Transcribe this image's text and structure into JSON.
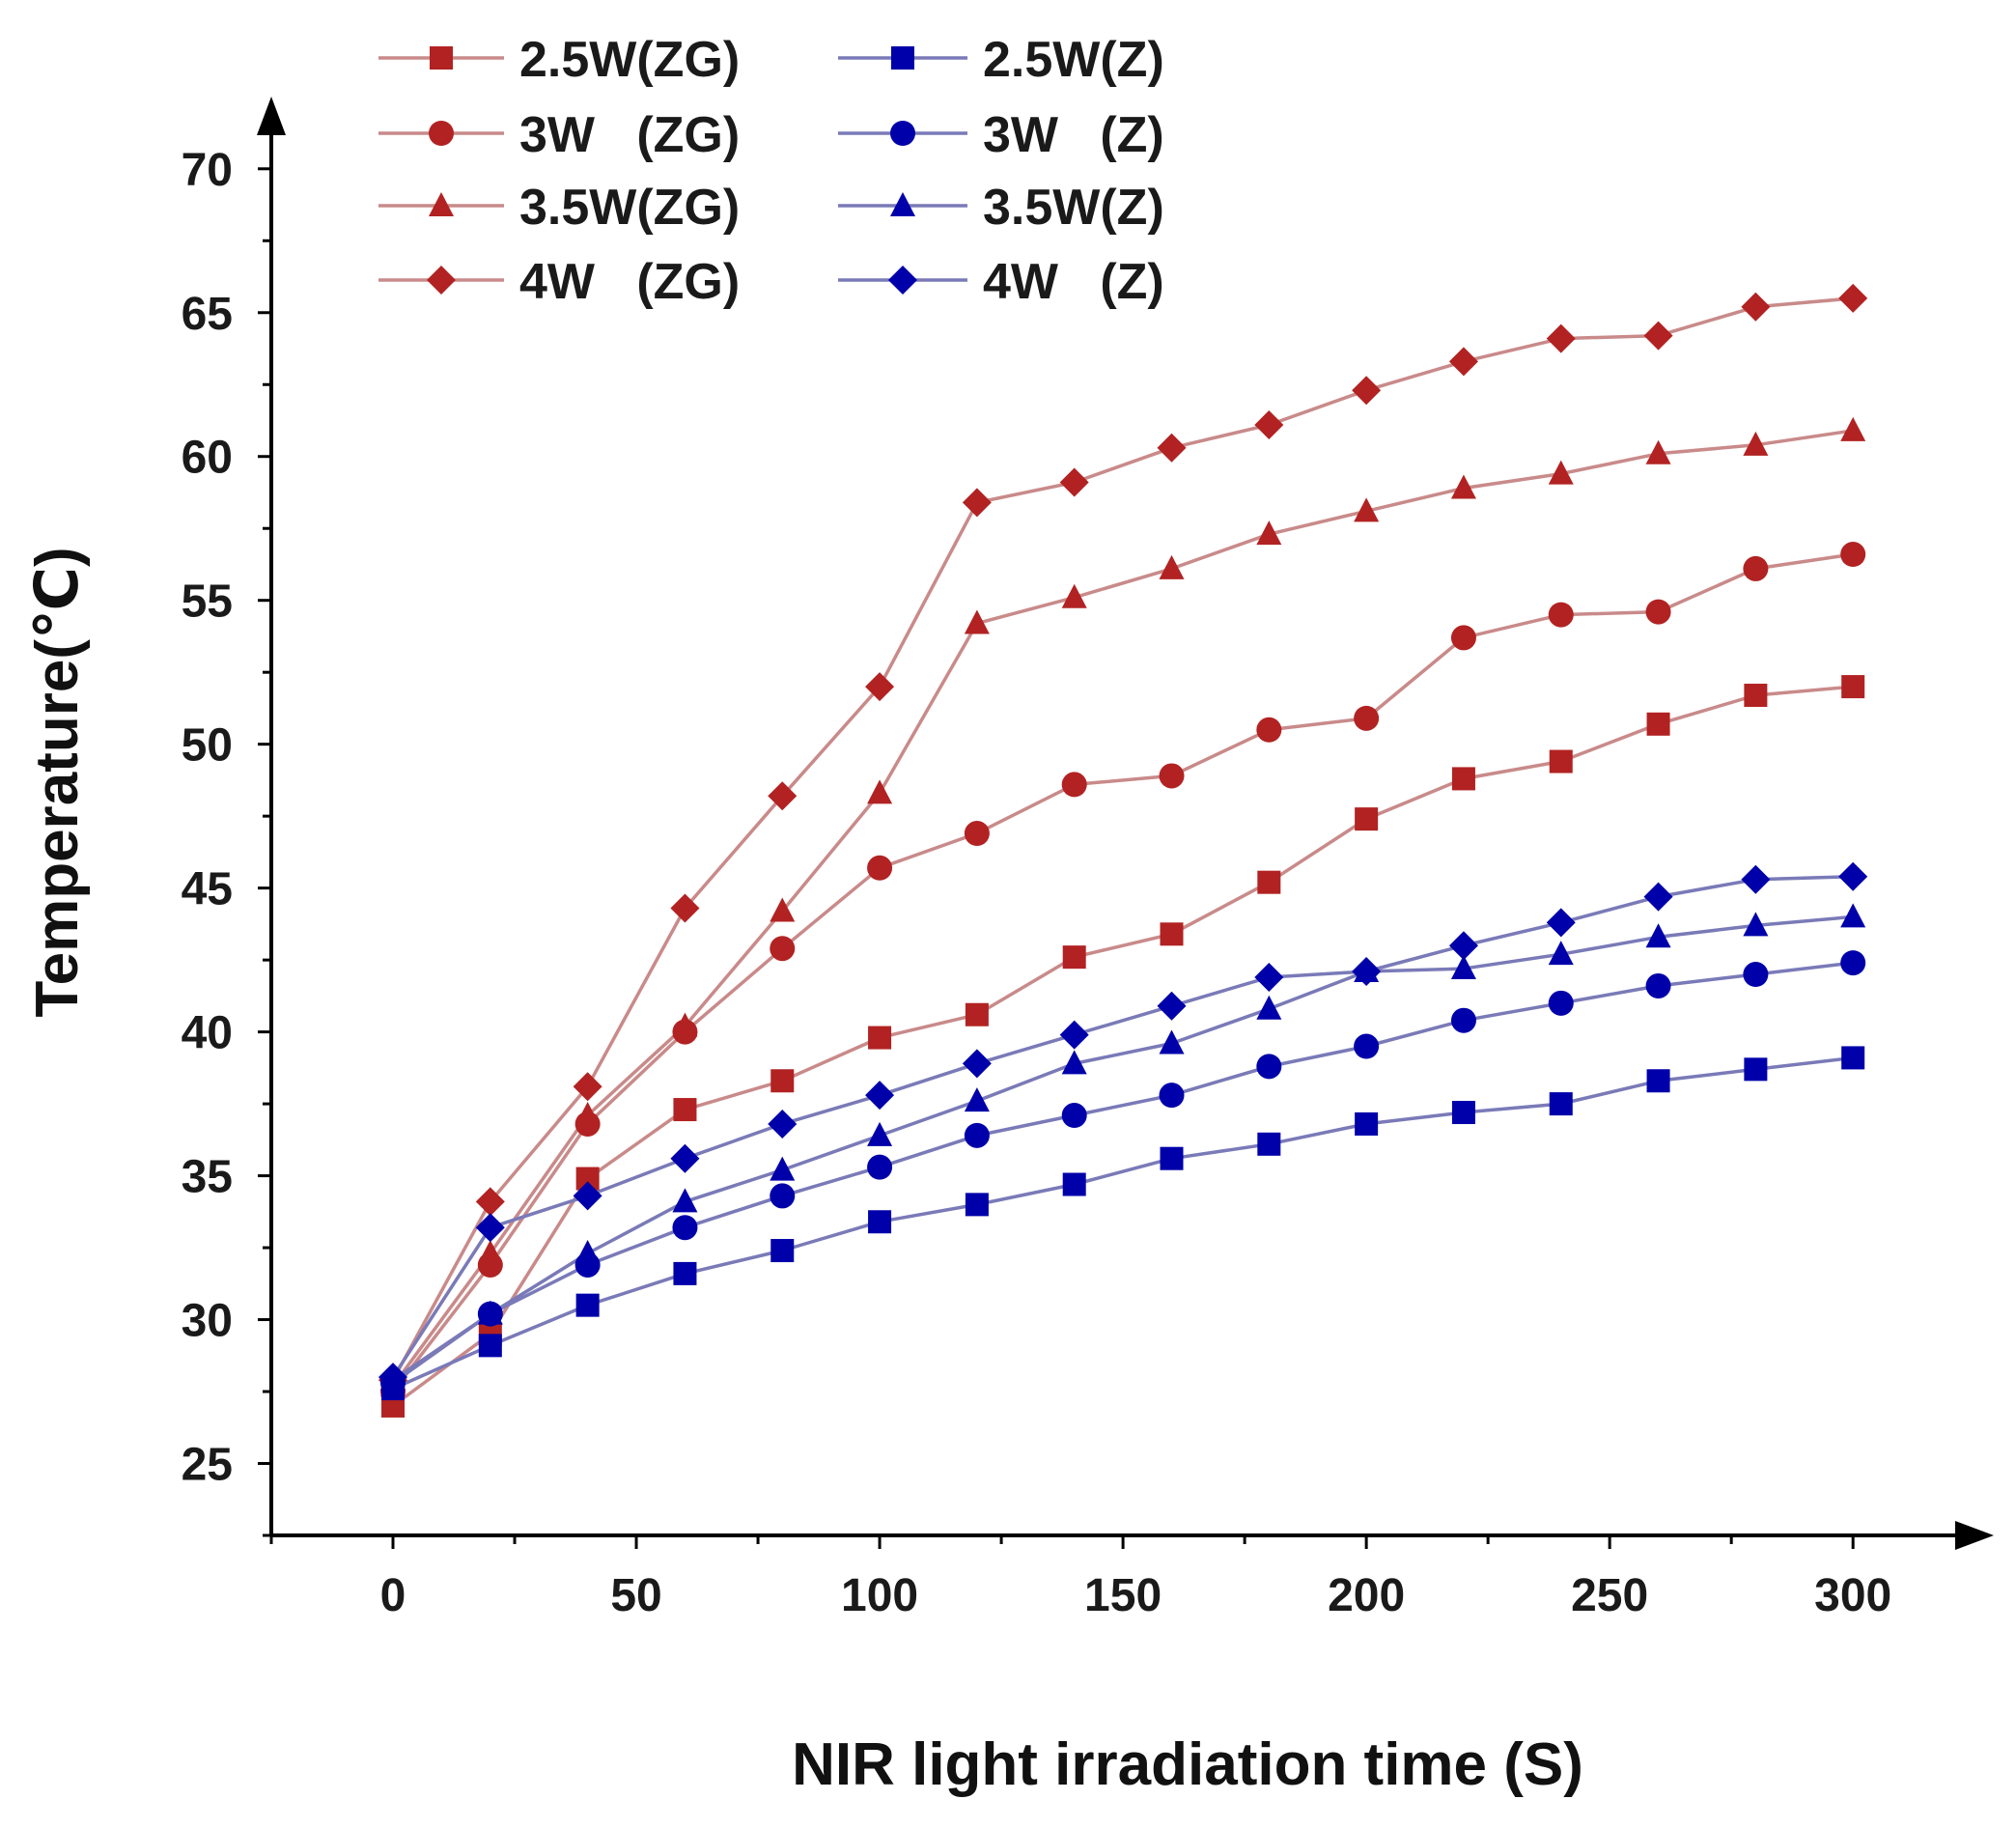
{
  "chart_data": {
    "type": "line",
    "title": "",
    "xlabel": "NIR light irradiation time (S)",
    "ylabel": "Temperature(℃)",
    "xlim": [
      -25,
      320
    ],
    "ylim": [
      22.5,
      71
    ],
    "xticks": [
      0,
      50,
      100,
      150,
      200,
      250,
      300
    ],
    "yticks": [
      25,
      30,
      35,
      40,
      45,
      50,
      55,
      60,
      65,
      70
    ],
    "xtick_labels": [
      "0",
      "50",
      "100",
      "150",
      "200",
      "250",
      "300"
    ],
    "ytick_labels": [
      "25",
      "30",
      "35",
      "40",
      "45",
      "50",
      "55",
      "60",
      "65",
      "70"
    ],
    "grid": false,
    "legend_position": "top-left",
    "colors": {
      "ZG": "#b22222",
      "Z": "#0000aa",
      "ZG_line": "#c98a8a",
      "Z_line": "#7a7ab8",
      "axis": "#000000"
    },
    "x": [
      0,
      20,
      40,
      60,
      80,
      100,
      120,
      140,
      160,
      180,
      200,
      220,
      240,
      260,
      280,
      300
    ],
    "series": [
      {
        "name": "2.5W(ZG)",
        "group": "ZG",
        "marker": "square",
        "values": [
          27.0,
          29.5,
          34.9,
          37.3,
          38.3,
          39.8,
          40.6,
          42.6,
          43.4,
          45.2,
          47.4,
          48.8,
          49.4,
          50.7,
          51.7,
          52.0
        ]
      },
      {
        "name": "3W   (ZG)",
        "group": "ZG",
        "marker": "circle",
        "values": [
          27.5,
          31.9,
          36.8,
          40.0,
          42.9,
          45.7,
          46.9,
          48.6,
          48.9,
          50.5,
          50.9,
          53.7,
          54.5,
          54.6,
          56.1,
          56.6
        ]
      },
      {
        "name": "3.5W(ZG)",
        "group": "ZG",
        "marker": "triangle",
        "values": [
          27.7,
          32.3,
          37.1,
          40.2,
          44.2,
          48.3,
          54.2,
          55.1,
          56.1,
          57.3,
          58.1,
          58.9,
          59.4,
          60.1,
          60.4,
          60.9
        ]
      },
      {
        "name": "4W   (ZG)",
        "group": "ZG",
        "marker": "diamond",
        "values": [
          27.9,
          34.1,
          38.1,
          44.3,
          48.2,
          52.0,
          58.4,
          59.1,
          60.3,
          61.1,
          62.3,
          63.3,
          64.1,
          64.2,
          65.2,
          65.5
        ]
      },
      {
        "name": "2.5W(Z)",
        "group": "Z",
        "marker": "square",
        "values": [
          27.6,
          29.1,
          30.5,
          31.6,
          32.4,
          33.4,
          34.0,
          34.7,
          35.6,
          36.1,
          36.8,
          37.2,
          37.5,
          38.3,
          38.7,
          39.1
        ]
      },
      {
        "name": "3W   (Z)",
        "group": "Z",
        "marker": "circle",
        "values": [
          27.8,
          30.2,
          31.9,
          33.2,
          34.3,
          35.3,
          36.4,
          37.1,
          37.8,
          38.8,
          39.5,
          40.4,
          41.0,
          41.6,
          42.0,
          42.4
        ]
      },
      {
        "name": "3.5W(Z)",
        "group": "Z",
        "marker": "triangle",
        "values": [
          27.9,
          30.2,
          32.3,
          34.1,
          35.2,
          36.4,
          37.6,
          38.9,
          39.6,
          40.8,
          42.1,
          42.2,
          42.7,
          43.3,
          43.7,
          44.0
        ]
      },
      {
        "name": "4W   (Z)",
        "group": "Z",
        "marker": "diamond",
        "values": [
          28.0,
          33.2,
          34.3,
          35.6,
          36.8,
          37.8,
          38.9,
          39.9,
          40.9,
          41.9,
          42.1,
          43.0,
          43.8,
          44.7,
          45.3,
          45.4
        ]
      }
    ]
  }
}
